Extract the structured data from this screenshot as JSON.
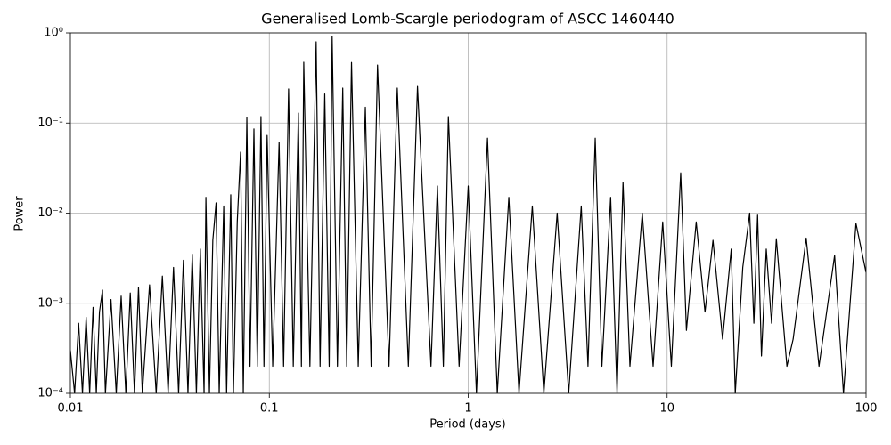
{
  "chart_data": {
    "type": "line",
    "title": "Generalised Lomb-Scargle periodogram of ASCC 1460440",
    "xlabel": "Period (days)",
    "ylabel": "Power",
    "xscale": "log",
    "yscale": "log",
    "grid": true,
    "xlim": [
      0.01,
      100
    ],
    "ylim": [
      0.0001,
      1
    ],
    "xticks": [
      0.01,
      0.1,
      1,
      10,
      100
    ],
    "yticks": [
      {
        "value": 0.0001,
        "label": "10⁻⁴"
      },
      {
        "value": 0.001,
        "label": "10⁻³"
      },
      {
        "value": 0.01,
        "label": "10⁻²"
      },
      {
        "value": 0.1,
        "label": "10⁻¹"
      },
      {
        "value": 1,
        "label": "10⁰"
      }
    ],
    "series": [
      {
        "color": "#000000",
        "x": [
          0.01,
          0.0105,
          0.011,
          0.0115,
          0.012,
          0.0125,
          0.013,
          0.0135,
          0.014,
          0.0145,
          0.015,
          0.016,
          0.017,
          0.018,
          0.019,
          0.02,
          0.021,
          0.022,
          0.023,
          0.025,
          0.027,
          0.029,
          0.031,
          0.033,
          0.035,
          0.037,
          0.039,
          0.041,
          0.043,
          0.045,
          0.047,
          0.048,
          0.05,
          0.052,
          0.054,
          0.056,
          0.059,
          0.061,
          0.064,
          0.066,
          0.069,
          0.0717,
          0.074,
          0.0771,
          0.08,
          0.0837,
          0.087,
          0.0908,
          0.094,
          0.0975,
          0.104,
          0.112,
          0.118,
          0.125,
          0.132,
          0.14,
          0.145,
          0.149,
          0.16,
          0.172,
          0.18,
          0.19,
          0.2,
          0.207,
          0.22,
          0.234,
          0.245,
          0.259,
          0.28,
          0.304,
          0.325,
          0.35,
          0.4,
          0.44,
          0.5,
          0.556,
          0.65,
          0.7,
          0.75,
          0.795,
          0.9,
          1.0,
          1.1,
          1.25,
          1.4,
          1.6,
          1.8,
          2.1,
          2.4,
          2.8,
          3.2,
          3.7,
          4.0,
          4.35,
          4.7,
          5.2,
          5.6,
          6.0,
          6.5,
          7.5,
          8.5,
          9.5,
          10.5,
          11.7,
          12.5,
          14,
          15.5,
          17,
          19,
          21,
          22,
          24,
          26,
          27.3,
          28.5,
          29.8,
          31.5,
          33.5,
          35.4,
          40,
          43,
          50,
          58,
          69.5,
          77,
          89,
          100
        ],
        "values": [
          0.0003,
          0.0001,
          0.0006,
          0.0001,
          0.0007,
          0.0001,
          0.0009,
          0.0001,
          0.0008,
          0.0014,
          0.0001,
          0.0011,
          0.0001,
          0.0012,
          0.0001,
          0.0013,
          0.0001,
          0.0015,
          0.0001,
          0.0016,
          0.0001,
          0.002,
          0.0001,
          0.0025,
          0.0001,
          0.003,
          0.0001,
          0.0035,
          0.0001,
          0.004,
          0.0001,
          0.015,
          0.0001,
          0.005,
          0.013,
          0.0001,
          0.012,
          0.0001,
          0.016,
          0.0001,
          0.008,
          0.0475,
          0.0001,
          0.115,
          0.0002,
          0.086,
          0.0002,
          0.118,
          0.0002,
          0.073,
          0.0002,
          0.061,
          0.0002,
          0.239,
          0.0002,
          0.129,
          0.0002,
          0.472,
          0.0002,
          0.797,
          0.0002,
          0.21,
          0.0002,
          0.913,
          0.0002,
          0.244,
          0.0002,
          0.47,
          0.0002,
          0.15,
          0.0002,
          0.44,
          0.0002,
          0.244,
          0.0002,
          0.255,
          0.0002,
          0.02,
          0.0002,
          0.118,
          0.0002,
          0.02,
          0.0001,
          0.068,
          0.0001,
          0.015,
          0.0001,
          0.012,
          0.0001,
          0.01,
          0.0001,
          0.012,
          0.0002,
          0.068,
          0.0002,
          0.015,
          0.0001,
          0.022,
          0.0002,
          0.01,
          0.0002,
          0.008,
          0.0002,
          0.028,
          0.0005,
          0.008,
          0.0008,
          0.005,
          0.0004,
          0.004,
          0.0001,
          0.0025,
          0.01,
          0.0006,
          0.0095,
          0.00026,
          0.004,
          0.0006,
          0.0052,
          0.0002,
          0.0004,
          0.0053,
          0.0002,
          0.0034,
          0.0001,
          0.0077,
          0.0022
        ]
      }
    ]
  }
}
